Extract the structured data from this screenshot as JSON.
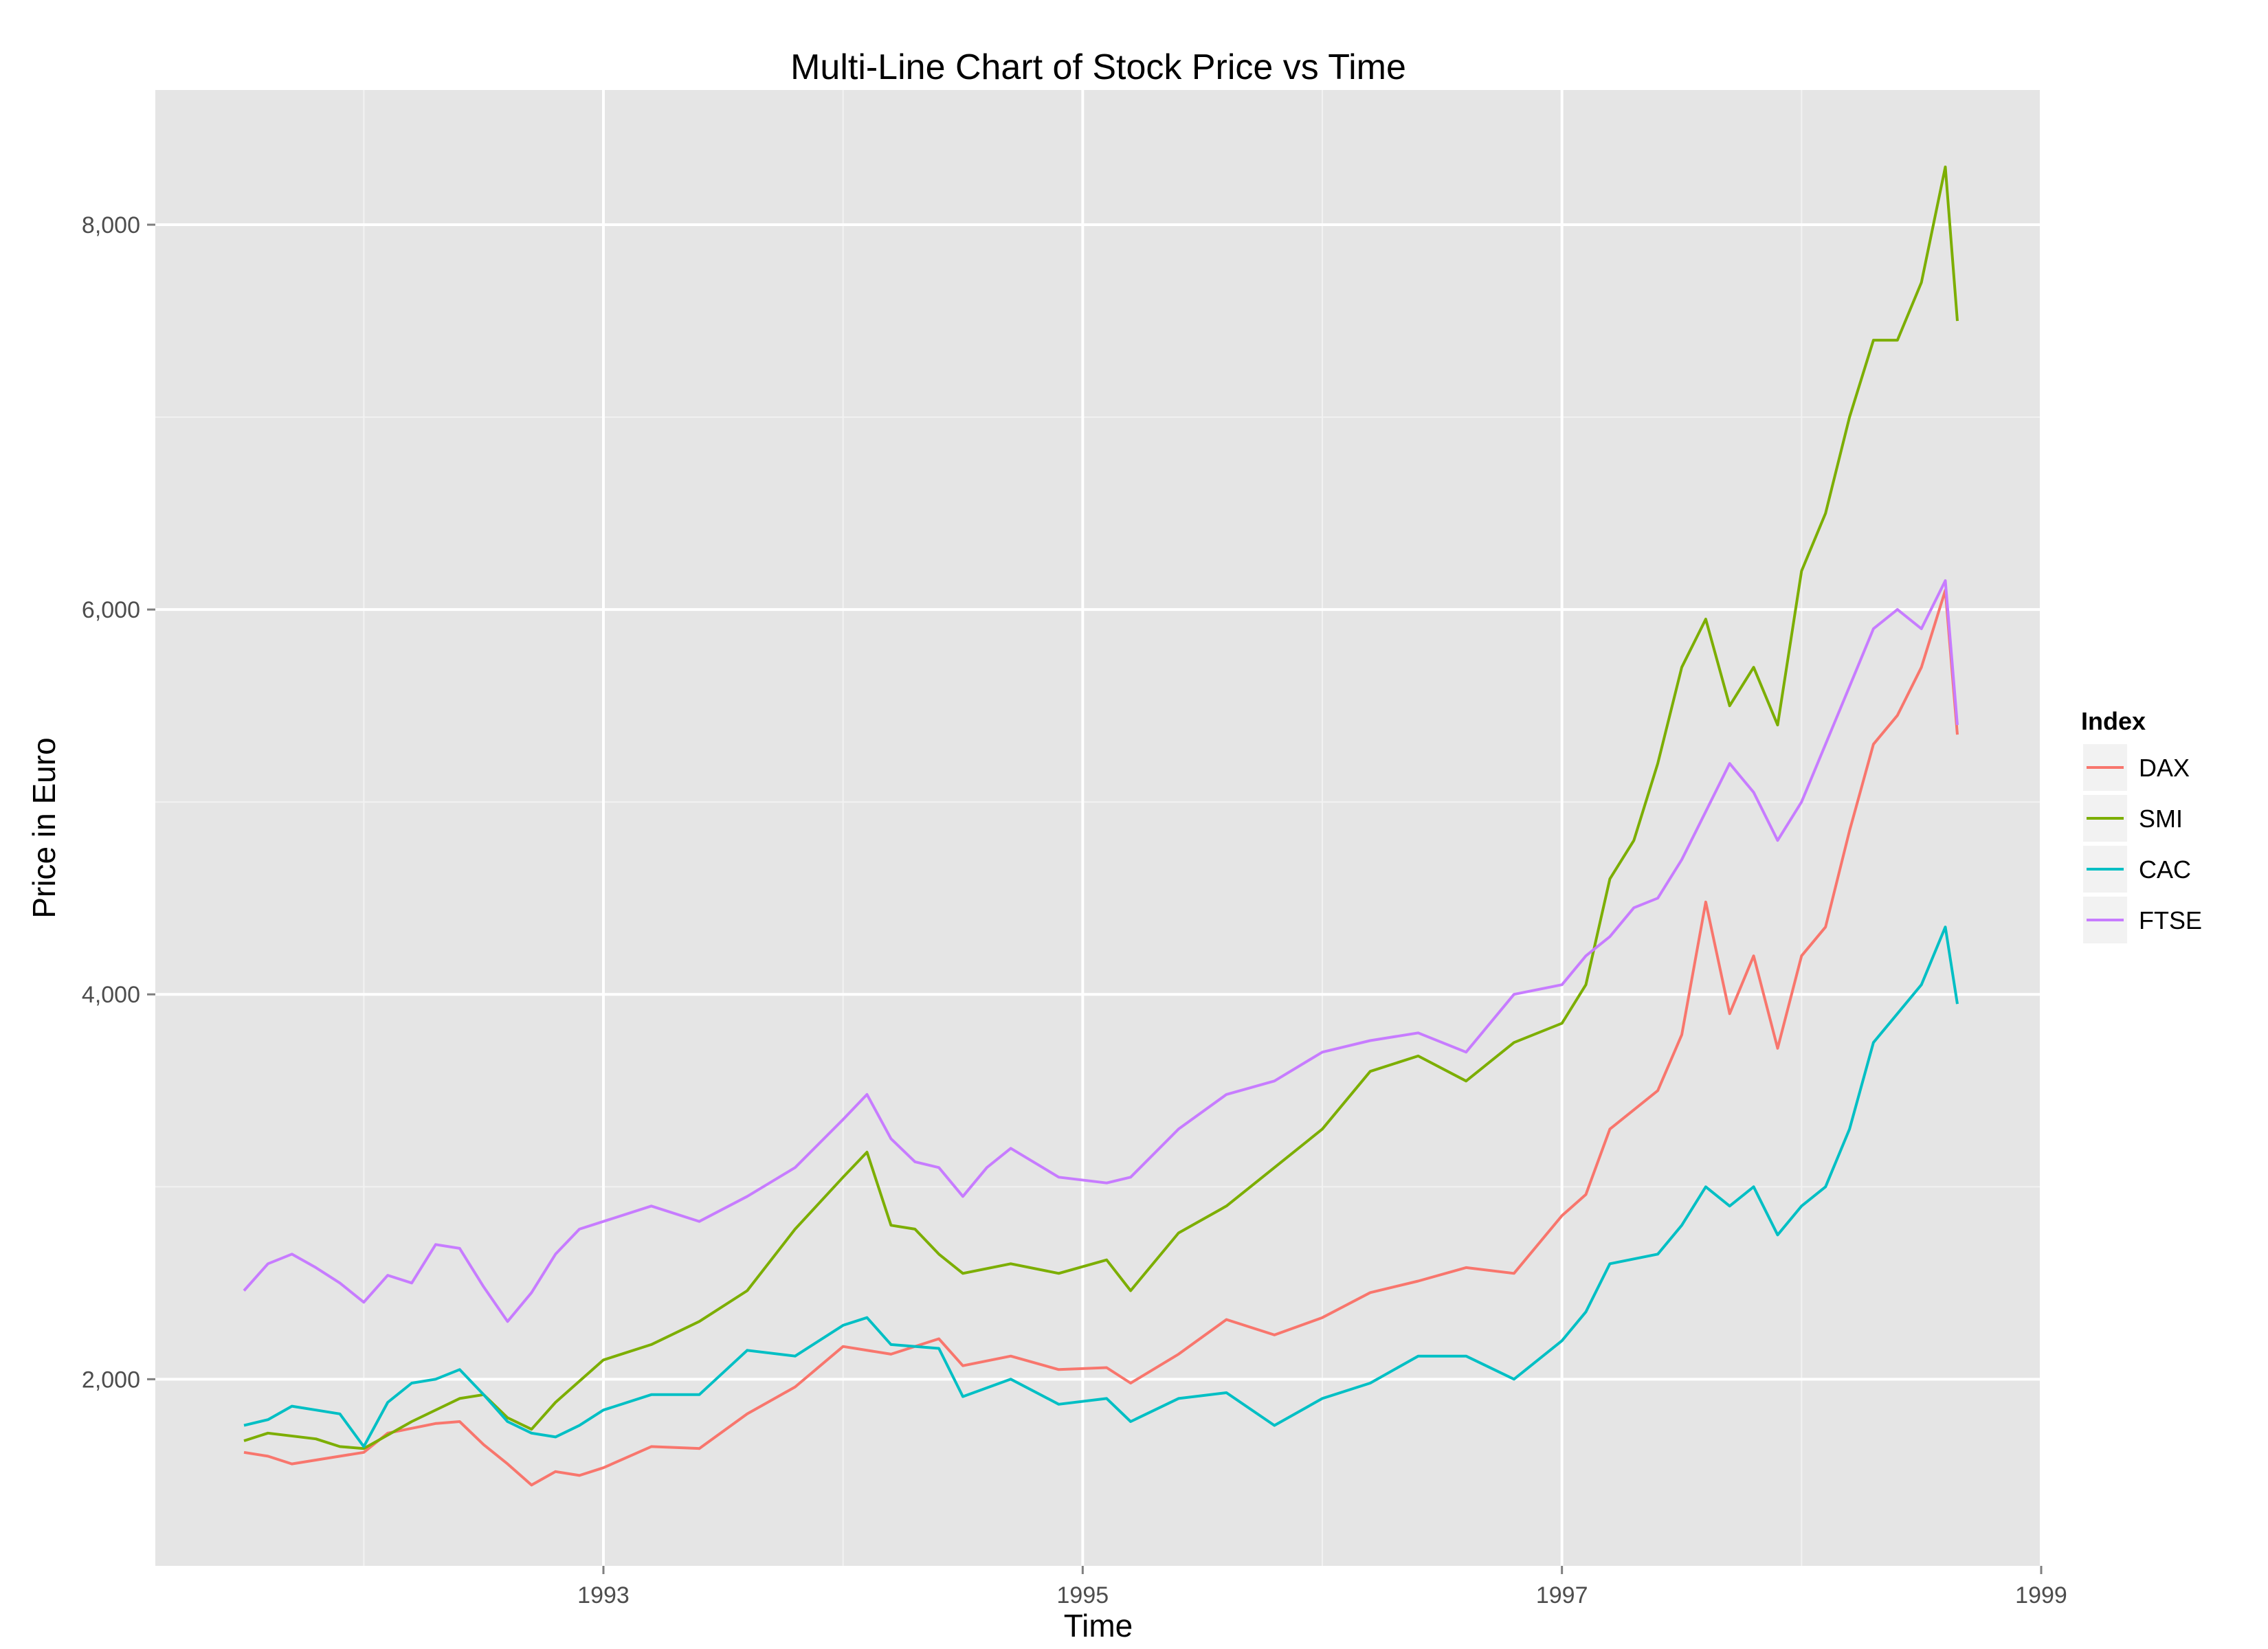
{
  "chart_data": {
    "type": "line",
    "title": "Multi-Line Chart of Stock Price vs Time",
    "xlabel": "Time",
    "ylabel": "Price in Euro",
    "xlim": [
      1991.13,
      1999.0
    ],
    "ylim": [
      1030,
      8700
    ],
    "x_ticks": [
      1993,
      1995,
      1997,
      1999
    ],
    "x_tick_labels": [
      "1993",
      "1995",
      "1997",
      "1999"
    ],
    "y_ticks": [
      2000,
      4000,
      6000,
      8000
    ],
    "y_tick_labels": [
      "2,000",
      "4,000",
      "6,000",
      "8,000"
    ],
    "grid": true,
    "legend": {
      "title": "Index",
      "position": "right"
    },
    "series": [
      {
        "name": "DAX",
        "color": "#F8766D",
        "x": [
          1991.5,
          1991.6,
          1991.7,
          1991.8,
          1992.0,
          1992.1,
          1992.3,
          1992.4,
          1992.5,
          1992.6,
          1992.7,
          1992.8,
          1992.9,
          1993.0,
          1993.2,
          1993.4,
          1993.6,
          1993.8,
          1994.0,
          1994.2,
          1994.4,
          1994.5,
          1994.7,
          1994.9,
          1995.1,
          1995.2,
          1995.4,
          1995.6,
          1995.8,
          1996.0,
          1996.2,
          1996.4,
          1996.6,
          1996.8,
          1997.0,
          1997.1,
          1997.2,
          1997.4,
          1997.5,
          1997.6,
          1997.7,
          1997.8,
          1997.9,
          1998.0,
          1998.1,
          1998.2,
          1998.3,
          1998.4,
          1998.5,
          1998.6,
          1998.65
        ],
        "y": [
          1620,
          1600,
          1560,
          1580,
          1620,
          1720,
          1770,
          1780,
          1660,
          1560,
          1450,
          1520,
          1500,
          1540,
          1650,
          1640,
          1820,
          1960,
          2170,
          2130,
          2210,
          2070,
          2120,
          2050,
          2060,
          1980,
          2130,
          2310,
          2230,
          2320,
          2450,
          2510,
          2580,
          2550,
          2850,
          2960,
          3300,
          3500,
          3790,
          4480,
          3900,
          4200,
          3720,
          4200,
          4350,
          4850,
          5300,
          5450,
          5700,
          6100,
          5350
        ]
      },
      {
        "name": "SMI",
        "color": "#7CAE00",
        "x": [
          1991.5,
          1991.6,
          1991.8,
          1991.9,
          1992.0,
          1992.2,
          1992.4,
          1992.5,
          1992.6,
          1992.7,
          1992.8,
          1993.0,
          1993.2,
          1993.4,
          1993.6,
          1993.8,
          1994.0,
          1994.1,
          1994.2,
          1994.3,
          1994.4,
          1994.5,
          1994.7,
          1994.9,
          1995.1,
          1995.2,
          1995.4,
          1995.6,
          1995.8,
          1996.0,
          1996.2,
          1996.4,
          1996.6,
          1996.8,
          1997.0,
          1997.1,
          1997.2,
          1997.3,
          1997.4,
          1997.5,
          1997.6,
          1997.7,
          1997.8,
          1997.9,
          1998.0,
          1998.1,
          1998.2,
          1998.3,
          1998.4,
          1998.5,
          1998.6,
          1998.65
        ],
        "y": [
          1680,
          1720,
          1690,
          1650,
          1640,
          1780,
          1900,
          1920,
          1800,
          1740,
          1880,
          2100,
          2180,
          2300,
          2460,
          2780,
          3050,
          3180,
          2800,
          2780,
          2650,
          2550,
          2600,
          2550,
          2620,
          2460,
          2760,
          2900,
          3100,
          3300,
          3600,
          3680,
          3550,
          3750,
          3850,
          4050,
          4600,
          4800,
          5200,
          5700,
          5950,
          5500,
          5700,
          5400,
          6200,
          6500,
          7000,
          7400,
          7400,
          7700,
          8300,
          7500
        ]
      },
      {
        "name": "CAC",
        "color": "#00BFC4",
        "x": [
          1991.5,
          1991.6,
          1991.7,
          1991.8,
          1991.9,
          1992.0,
          1992.1,
          1992.2,
          1992.3,
          1992.4,
          1992.5,
          1992.6,
          1992.7,
          1992.8,
          1992.9,
          1993.0,
          1993.2,
          1993.4,
          1993.6,
          1993.8,
          1994.0,
          1994.1,
          1994.2,
          1994.4,
          1994.5,
          1994.7,
          1994.9,
          1995.1,
          1995.2,
          1995.4,
          1995.6,
          1995.8,
          1996.0,
          1996.2,
          1996.4,
          1996.6,
          1996.8,
          1997.0,
          1997.1,
          1997.2,
          1997.4,
          1997.5,
          1997.6,
          1997.7,
          1997.8,
          1997.9,
          1998.0,
          1998.1,
          1998.2,
          1998.3,
          1998.4,
          1998.5,
          1998.6,
          1998.65
        ],
        "y": [
          1760,
          1790,
          1860,
          1840,
          1820,
          1650,
          1880,
          1980,
          2000,
          2050,
          1920,
          1780,
          1720,
          1700,
          1760,
          1840,
          1920,
          1920,
          2150,
          2120,
          2280,
          2320,
          2180,
          2160,
          1910,
          2000,
          1870,
          1900,
          1780,
          1900,
          1930,
          1760,
          1900,
          1980,
          2120,
          2120,
          2000,
          2200,
          2350,
          2600,
          2650,
          2800,
          3000,
          2900,
          3000,
          2750,
          2900,
          3000,
          3300,
          3750,
          3900,
          4050,
          4350,
          3950
        ]
      },
      {
        "name": "FTSE",
        "color": "#C77CFF",
        "x": [
          1991.5,
          1991.6,
          1991.7,
          1991.8,
          1991.9,
          1992.0,
          1992.1,
          1992.2,
          1992.3,
          1992.4,
          1992.5,
          1992.6,
          1992.7,
          1992.8,
          1992.9,
          1993.0,
          1993.2,
          1993.4,
          1993.6,
          1993.8,
          1994.0,
          1994.1,
          1994.2,
          1994.3,
          1994.4,
          1994.5,
          1994.6,
          1994.7,
          1994.9,
          1995.1,
          1995.2,
          1995.4,
          1995.6,
          1995.8,
          1996.0,
          1996.2,
          1996.4,
          1996.6,
          1996.8,
          1997.0,
          1997.1,
          1997.2,
          1997.3,
          1997.4,
          1997.5,
          1997.6,
          1997.7,
          1997.8,
          1997.9,
          1998.0,
          1998.1,
          1998.2,
          1998.3,
          1998.4,
          1998.5,
          1998.6,
          1998.65
        ],
        "y": [
          2460,
          2600,
          2650,
          2580,
          2500,
          2400,
          2540,
          2500,
          2700,
          2680,
          2480,
          2300,
          2450,
          2650,
          2780,
          2820,
          2900,
          2820,
          2950,
          3100,
          3350,
          3480,
          3250,
          3130,
          3100,
          2950,
          3100,
          3200,
          3050,
          3020,
          3050,
          3300,
          3480,
          3550,
          3700,
          3760,
          3800,
          3700,
          4000,
          4050,
          4200,
          4300,
          4450,
          4500,
          4700,
          4950,
          5200,
          5050,
          4800,
          5000,
          5300,
          5600,
          5900,
          6000,
          5900,
          6150,
          5400
        ]
      }
    ]
  }
}
